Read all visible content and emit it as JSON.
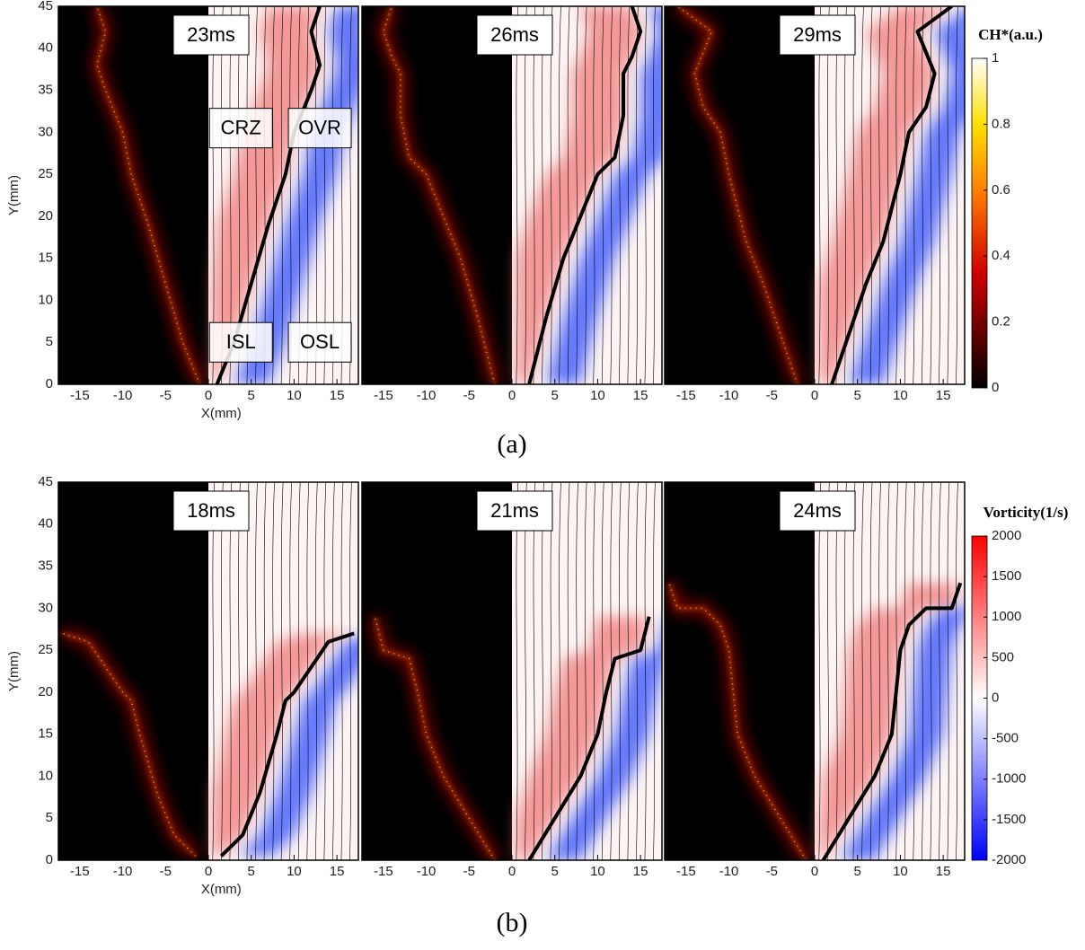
{
  "chart_data": [
    {
      "type": "flame",
      "title": "23ms",
      "xlim": [
        -17.5,
        17.5
      ],
      "ylim": [
        0,
        45
      ],
      "xticks": [
        -15,
        -10,
        -5,
        0,
        5,
        10,
        15
      ],
      "yticks": [
        0,
        5,
        10,
        15,
        20,
        25,
        30,
        35,
        40,
        45
      ],
      "xlabel": "X(mm)",
      "ylabel": "Y(mm)",
      "annotations": [
        "CRZ",
        "OVR",
        "ISL",
        "OSL"
      ],
      "flame_front": {
        "x": [
          1,
          3,
          5,
          7,
          9,
          10,
          12,
          13,
          12,
          13
        ],
        "y": [
          0,
          5,
          12,
          19,
          25,
          30,
          35,
          38,
          42,
          45
        ]
      }
    },
    {
      "type": "flame",
      "title": "26ms",
      "xlim": [
        -17.5,
        17.5
      ],
      "ylim": [
        0,
        45
      ],
      "xticks": [
        -15,
        -10,
        -5,
        0,
        5,
        10,
        15
      ],
      "flame_front": {
        "x": [
          2,
          4,
          6,
          8,
          10,
          12,
          13,
          13,
          14,
          15,
          14
        ],
        "y": [
          0,
          8,
          15,
          20,
          25,
          27,
          32,
          37,
          39,
          42,
          45
        ]
      }
    },
    {
      "type": "flame",
      "title": "29ms",
      "xlim": [
        -17.5,
        17.5
      ],
      "ylim": [
        0,
        45
      ],
      "xticks": [
        -15,
        -10,
        -5,
        0,
        5,
        10,
        15
      ],
      "flame_front": {
        "x": [
          2,
          4,
          6,
          8,
          10,
          11,
          13,
          14,
          12,
          16
        ],
        "y": [
          0,
          6,
          12,
          17,
          25,
          30,
          33,
          37,
          42,
          45
        ]
      }
    },
    {
      "type": "flame",
      "title": "18ms",
      "xlim": [
        -17.5,
        17.5
      ],
      "ylim": [
        0,
        45
      ],
      "xticks": [
        -15,
        -10,
        -5,
        0,
        5,
        10,
        15
      ],
      "yticks": [
        0,
        5,
        10,
        15,
        20,
        25,
        30,
        35,
        40,
        45
      ],
      "xlabel": "X(mm)",
      "ylabel": "Y(mm)",
      "flame_front": {
        "x": [
          1.5,
          4,
          6,
          8,
          9,
          10,
          12,
          14,
          17
        ],
        "y": [
          0.5,
          3,
          8,
          15,
          19,
          20,
          23,
          26,
          27
        ]
      }
    },
    {
      "type": "flame",
      "title": "21ms",
      "xlim": [
        -17.5,
        17.5
      ],
      "ylim": [
        0,
        45
      ],
      "xticks": [
        -15,
        -10,
        -5,
        0,
        5,
        10,
        15
      ],
      "flame_front": {
        "x": [
          2,
          5,
          8,
          10,
          11,
          12,
          15,
          16
        ],
        "y": [
          0,
          5,
          10,
          15,
          20,
          24,
          25,
          29
        ]
      }
    },
    {
      "type": "flame",
      "title": "24ms",
      "xlim": [
        -17.5,
        17.5
      ],
      "ylim": [
        0,
        45
      ],
      "xticks": [
        -15,
        -10,
        -5,
        0,
        5,
        10,
        15
      ],
      "flame_front": {
        "x": [
          1,
          4,
          7,
          9,
          9.5,
          10,
          11,
          13,
          16,
          17
        ],
        "y": [
          0,
          5,
          10,
          15,
          20,
          25,
          28,
          30,
          30,
          33
        ]
      }
    }
  ],
  "colorbars": [
    {
      "label": "CH*(a.u.)",
      "lim": [
        0,
        1
      ],
      "ticks": [
        0,
        0.2,
        0.4,
        0.6,
        0.8,
        1
      ]
    },
    {
      "label": "Vorticity(1/s)",
      "lim": [
        -2000,
        2000
      ],
      "ticks": [
        -2000,
        -1500,
        -1000,
        -500,
        0,
        500,
        1000,
        1500,
        2000
      ]
    }
  ],
  "captions": [
    "(a)",
    "(b)"
  ]
}
